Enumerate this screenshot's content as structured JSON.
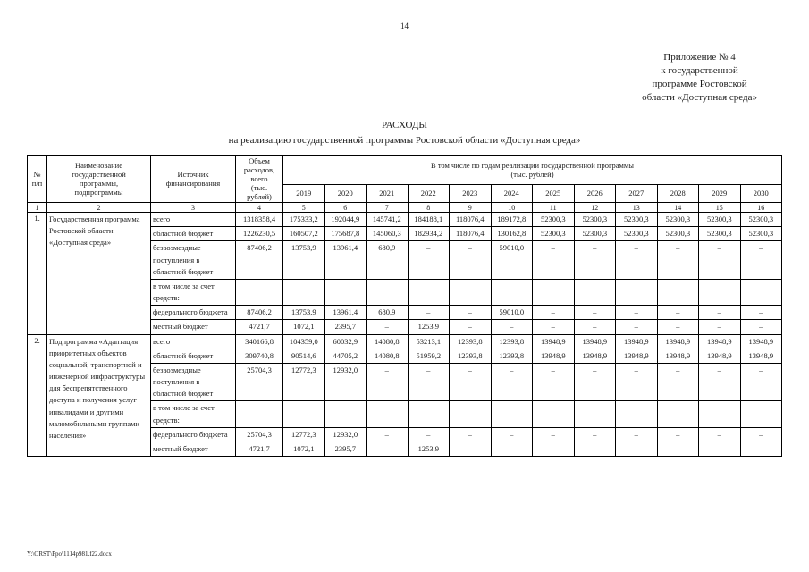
{
  "page": {
    "page_number": "14",
    "footer_path": "Y:\\ORST\\Ppo\\1114p981.f22.docx"
  },
  "annex": {
    "text": "Приложение № 4\nк государственной\nпрограмме Ростовской\nобласти «Доступная среда»"
  },
  "title": {
    "line1": "РАСХОДЫ",
    "line2": "на реализацию государственной программы Ростовской области «Доступная среда»"
  },
  "table": {
    "headers": {
      "num": "№\nп/п",
      "name": "Наименование\nгосударственной\nпрограммы,\nподпрограммы",
      "source": "Источник\nфинансирования",
      "volume": "Объем\nрасходов,\nвсего\n(тыс.\nрублей)",
      "years_group": "В том числе по годам реализации государственной программы\n(тыс. рублей)",
      "years": [
        "2019",
        "2020",
        "2021",
        "2022",
        "2023",
        "2024",
        "2025",
        "2026",
        "2027",
        "2028",
        "2029",
        "2030"
      ],
      "col_numbers": [
        "1",
        "2",
        "3",
        "4",
        "5",
        "6",
        "7",
        "8",
        "9",
        "10",
        "11",
        "12",
        "13",
        "14",
        "15",
        "16"
      ]
    },
    "sections": [
      {
        "num": "1.",
        "name": "Государственная программа Ростовской области «Доступная среда»",
        "rows": [
          {
            "source": "всего",
            "total": "1318358,4",
            "values": [
              "175333,2",
              "192044,9",
              "145741,2",
              "184188,1",
              "118076,4",
              "189172,8",
              "52300,3",
              "52300,3",
              "52300,3",
              "52300,3",
              "52300,3",
              "52300,3"
            ]
          },
          {
            "source": "областной бюджет",
            "total": "1226230,5",
            "values": [
              "160507,2",
              "175687,8",
              "145060,3",
              "182934,2",
              "118076,4",
              "130162,8",
              "52300,3",
              "52300,3",
              "52300,3",
              "52300,3",
              "52300,3",
              "52300,3"
            ]
          },
          {
            "source": "безвозмездные поступления в областной бюджет",
            "total": "87406,2",
            "values": [
              "13753,9",
              "13961,4",
              "680,9",
              "–",
              "–",
              "59010,0",
              "–",
              "–",
              "–",
              "–",
              "–",
              "–"
            ]
          },
          {
            "source": "в том числе за счет средств:",
            "total": "",
            "values": [
              "",
              "",
              "",
              "",
              "",
              "",
              "",
              "",
              "",
              "",
              "",
              ""
            ]
          },
          {
            "source": "федерального бюджета",
            "total": "87406,2",
            "values": [
              "13753,9",
              "13961,4",
              "680,9",
              "–",
              "–",
              "59010,0",
              "–",
              "–",
              "–",
              "–",
              "–",
              "–"
            ]
          },
          {
            "source": "местный бюджет",
            "total": "4721,7",
            "values": [
              "1072,1",
              "2395,7",
              "–",
              "1253,9",
              "–",
              "–",
              "–",
              "–",
              "–",
              "–",
              "–",
              "–"
            ]
          }
        ]
      },
      {
        "num": "2.",
        "name": "Подпрограмма «Адаптация приоритетных объектов социальной, транспортной и инженерной инфраструктуры для беспрепятственного доступа и получения услуг инвалидами и другими маломобильными группами населения»",
        "rows": [
          {
            "source": "всего",
            "total": "340166,8",
            "values": [
              "104359,0",
              "60032,9",
              "14080,8",
              "53213,1",
              "12393,8",
              "12393,8",
              "13948,9",
              "13948,9",
              "13948,9",
              "13948,9",
              "13948,9",
              "13948,9"
            ]
          },
          {
            "source": "областной бюджет",
            "total": "309740,8",
            "values": [
              "90514,6",
              "44705,2",
              "14080,8",
              "51959,2",
              "12393,8",
              "12393,8",
              "13948,9",
              "13948,9",
              "13948,9",
              "13948,9",
              "13948,9",
              "13948,9"
            ]
          },
          {
            "source": "безвозмездные поступления в областной бюджет",
            "total": "25704,3",
            "values": [
              "12772,3",
              "12932,0",
              "–",
              "–",
              "–",
              "–",
              "–",
              "–",
              "–",
              "–",
              "–",
              "–"
            ]
          },
          {
            "source": "в том числе за счет средств:",
            "total": "",
            "values": [
              "",
              "",
              "",
              "",
              "",
              "",
              "",
              "",
              "",
              "",
              "",
              ""
            ]
          },
          {
            "source": "федерального бюджета",
            "total": "25704,3",
            "values": [
              "12772,3",
              "12932,0",
              "–",
              "–",
              "–",
              "–",
              "–",
              "–",
              "–",
              "–",
              "–",
              "–"
            ]
          },
          {
            "source": "местный бюджет",
            "total": "4721,7",
            "values": [
              "1072,1",
              "2395,7",
              "–",
              "1253,9",
              "–",
              "–",
              "–",
              "–",
              "–",
              "–",
              "–",
              "–"
            ]
          }
        ]
      }
    ]
  }
}
